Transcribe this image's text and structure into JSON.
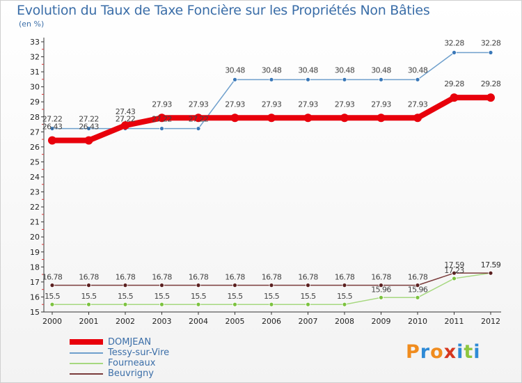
{
  "header": {
    "title": "Evolution du Taux de Taxe Foncière sur les Propriétés Non Bâties",
    "unit": "(en %)"
  },
  "brand": {
    "text": "Proxiti",
    "colors": [
      "#f08c1e",
      "#2e8ad6",
      "#f08c1e",
      "#d6371f",
      "#2e8ad6",
      "#8dc63f",
      "#2e8ad6"
    ]
  },
  "chart_data": {
    "type": "line",
    "title": "Evolution du Taux de Taxe Foncière sur les Propriétés Non Bâties",
    "ylabel": "(en %)",
    "x": [
      "2000",
      "2001",
      "2002",
      "2003",
      "2004",
      "2005",
      "2006",
      "2007",
      "2008",
      "2009",
      "2010",
      "2011",
      "2012"
    ],
    "ylim": [
      15,
      33
    ],
    "yticks": [
      15,
      16,
      17,
      18,
      19,
      20,
      21,
      22,
      23,
      24,
      25,
      26,
      27,
      28,
      29,
      30,
      31,
      32,
      33
    ],
    "grid": false,
    "legend": "bottom-left",
    "series": [
      {
        "name": "DOMJEAN",
        "color": "#e8000b",
        "width": 8,
        "values": [
          26.43,
          26.43,
          27.43,
          27.93,
          27.93,
          27.93,
          27.93,
          27.93,
          27.93,
          27.93,
          27.93,
          29.28,
          29.28
        ],
        "labels": [
          "26.43",
          "26.43",
          "27.43",
          "27.93",
          "27.93",
          "27.93",
          "27.93",
          "27.93",
          "27.93",
          "27.93",
          "27.93",
          "29.28",
          "29.28"
        ]
      },
      {
        "name": "Tessy-sur-Vire",
        "color": "#6e9fcc",
        "width": 1.5,
        "values": [
          27.22,
          27.22,
          27.22,
          27.22,
          27.22,
          30.48,
          30.48,
          30.48,
          30.48,
          30.48,
          30.48,
          32.28,
          32.28
        ],
        "labels": [
          "27.22",
          "27.22",
          "27.22",
          "27.22",
          "27.22",
          "30.48",
          "30.48",
          "30.48",
          "30.48",
          "30.48",
          "30.48",
          "32.28",
          "32.28"
        ]
      },
      {
        "name": "Fourneaux",
        "color": "#a6d87f",
        "width": 1.5,
        "values": [
          15.5,
          15.5,
          15.5,
          15.5,
          15.5,
          15.5,
          15.5,
          15.5,
          15.5,
          15.96,
          15.96,
          17.23,
          17.59
        ],
        "labels": [
          "15.5",
          "15.5",
          "15.5",
          "15.5",
          "15.5",
          "15.5",
          "15.5",
          "15.5",
          "15.5",
          "15.96",
          "15.96",
          "17.23",
          "17.59"
        ]
      },
      {
        "name": "Beuvrigny",
        "color": "#7a3b3b",
        "width": 1.5,
        "values": [
          16.78,
          16.78,
          16.78,
          16.78,
          16.78,
          16.78,
          16.78,
          16.78,
          16.78,
          16.78,
          16.78,
          17.59,
          17.59
        ],
        "labels": [
          "16.78",
          "16.78",
          "16.78",
          "16.78",
          "16.78",
          "16.78",
          "16.78",
          "16.78",
          "16.78",
          "16.78",
          "16.78",
          "17.59",
          "17.59"
        ]
      }
    ],
    "marker_colors": {
      "DOMJEAN": "#e8000b",
      "Tessy-sur-Vire": "#3a78b8",
      "Fourneaux": "#7cc23f",
      "Beuvrigny": "#5a1f1f"
    }
  }
}
